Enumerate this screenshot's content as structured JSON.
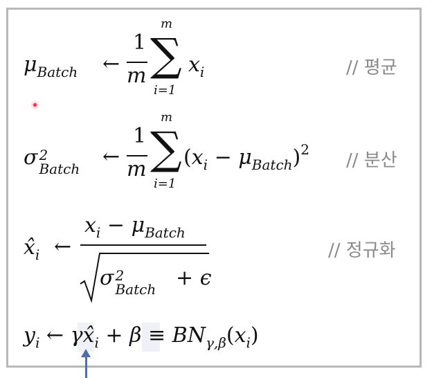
{
  "formulas": {
    "mean": {
      "lhs_symbol": "μ",
      "lhs_sub": "Batch",
      "arrow": "←",
      "frac_num": "1",
      "frac_den": "m",
      "sum_top": "m",
      "sum_bottom": "i=1",
      "term": "x",
      "term_sub": "i",
      "comment": "// 평균"
    },
    "variance": {
      "lhs_symbol": "σ",
      "lhs_sup": "2",
      "lhs_sub": "Batch",
      "arrow": "←",
      "frac_num": "1",
      "frac_den": "m",
      "sum_top": "m",
      "sum_bottom": "i=1",
      "term_open": "(",
      "term_x": "x",
      "term_x_sub": "i",
      "term_minus": "−",
      "term_mu": "μ",
      "term_mu_sub": "Batch",
      "term_close": ")",
      "term_sup": "2",
      "comment": "// 분산"
    },
    "normalize": {
      "lhs": "x̂",
      "lhs_sub": "i",
      "arrow": "←",
      "num_x": "x",
      "num_x_sub": "i",
      "num_minus": "−",
      "num_mu": "μ",
      "num_mu_sub": "Batch",
      "den_sigma": "σ",
      "den_sup": "2",
      "den_sub": "Batch",
      "den_plus": "+",
      "den_eps": "ϵ",
      "comment": "// 정규화"
    },
    "scale_shift": {
      "lhs": "y",
      "lhs_sub": "i",
      "arrow": "←",
      "gamma": "γ",
      "xhat": "x̂",
      "xhat_sub": "i",
      "plus": "+",
      "beta": "β",
      "equiv": "≡",
      "bn": "BN",
      "bn_sub": "γ,β",
      "arg_open": "(",
      "arg_x": "x",
      "arg_x_sub": "i",
      "arg_close": ")"
    }
  },
  "colors": {
    "frame": "#b8b8b8",
    "comment": "#8a8a8a",
    "highlight": "#eef2f6",
    "arrow": "#4a6fb3",
    "cursor": "#e8344f"
  }
}
